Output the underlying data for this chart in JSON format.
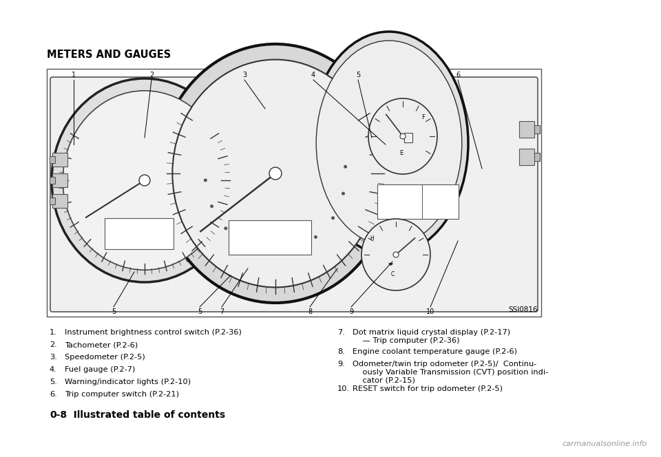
{
  "bg_color": "#ffffff",
  "page_title": "METERS AND GAUGES",
  "ssi_label": "SSI0816",
  "footer_bold": "0-8",
  "footer_text": "   Illustrated table of contents",
  "watermark": "carmanualsonline.info",
  "left_items": [
    [
      "1.",
      "Instrument brightness control switch (P.2-36)"
    ],
    [
      "2.",
      "Tachometer (P.2-6)"
    ],
    [
      "3.",
      "Speedometer (P.2-5)"
    ],
    [
      "4.",
      "Fuel gauge (P.2-7)"
    ],
    [
      "5.",
      "Warning/indicator lights (P.2-10)"
    ],
    [
      "6.",
      "Trip computer switch (P.2-21)"
    ]
  ],
  "right_items": [
    [
      "7.",
      "Dot matrix liquid crystal display (P.2-17)\n    — Trip computer (P.2-36)"
    ],
    [
      "8.",
      "Engine coolant temperature gauge (P.2-6)"
    ],
    [
      "9.",
      "Odometer/twin trip odometer (P.2-5)/  Continu-\n    ously Variable Transmission (CVT) position indi-\n    cator (P.2-15)"
    ],
    [
      "10.",
      "RESET switch for trip odometer (P.2-5)"
    ]
  ]
}
